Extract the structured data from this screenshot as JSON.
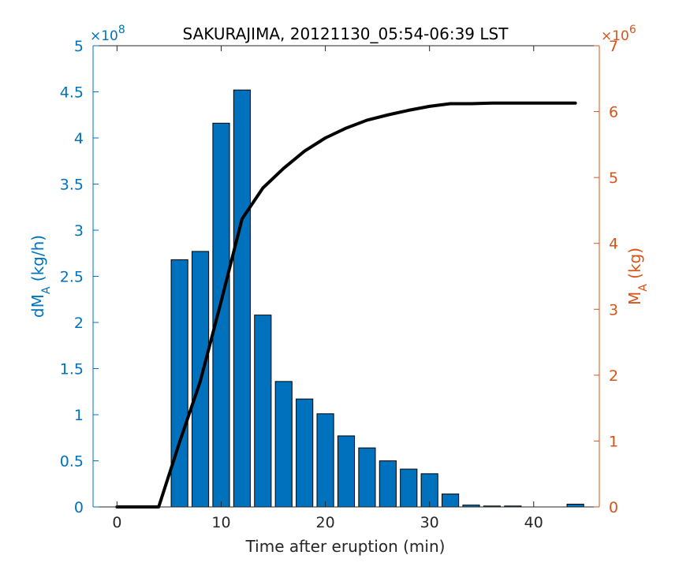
{
  "chart_data": {
    "type": "bar",
    "title": "SAKURAJIMA, 20121130_05:54-06:39 LST",
    "xlabel": "Time after eruption (min)",
    "ylabel_left": {
      "main": "dM",
      "sub": "A",
      "unit": " (kg/h)"
    },
    "ylabel_right": {
      "main": "M",
      "sub": "A",
      "unit": " (kg)"
    },
    "left_multiplier": {
      "times": "×10",
      "exponent": "8"
    },
    "right_multiplier": {
      "times": "×10",
      "exponent": "6"
    },
    "x_ticks": [
      0,
      10,
      20,
      30,
      40
    ],
    "x_tick_labels": [
      "0",
      "10",
      "20",
      "30",
      "40"
    ],
    "xlim": [
      -2.3,
      46.3
    ],
    "y_left_ticks": [
      0,
      0.5,
      1,
      1.5,
      2,
      2.5,
      3,
      3.5,
      4,
      4.5,
      5
    ],
    "y_left_tick_labels": [
      "0",
      "0.5",
      "1",
      "1.5",
      "2",
      "2.5",
      "3",
      "3.5",
      "4",
      "4.5",
      "5"
    ],
    "y_left_lim": [
      0,
      5
    ],
    "y_right_ticks": [
      0,
      1,
      2,
      3,
      4,
      5,
      6,
      7
    ],
    "y_right_tick_labels": [
      "0",
      "1",
      "2",
      "3",
      "4",
      "5",
      "6",
      "7"
    ],
    "y_right_lim": [
      0,
      7
    ],
    "colors": {
      "bars": "#0072BD",
      "left_axis": "#0072BD",
      "right_axis": "#D95319",
      "line": "#000000"
    },
    "bar_series": {
      "name": "dM_A (kg/h)",
      "axis": "left",
      "x": [
        6,
        8,
        10,
        12,
        14,
        16,
        18,
        20,
        22,
        24,
        26,
        28,
        30,
        32,
        34,
        36,
        38,
        40,
        42,
        44
      ],
      "values": [
        2.68,
        2.77,
        4.16,
        4.52,
        2.08,
        1.36,
        1.17,
        1.01,
        0.77,
        0.64,
        0.5,
        0.41,
        0.36,
        0.14,
        0.02,
        0.01,
        0.01,
        0.0,
        0.0,
        0.03
      ]
    },
    "line_series": {
      "name": "M_A (kg)",
      "axis": "right",
      "x": [
        0,
        4,
        6,
        8,
        10,
        12,
        14,
        16,
        18,
        20,
        22,
        24,
        26,
        28,
        30,
        32,
        34,
        36,
        38,
        40,
        42,
        44
      ],
      "values": [
        0,
        0,
        0.98,
        1.91,
        3.12,
        4.37,
        4.84,
        5.14,
        5.4,
        5.6,
        5.75,
        5.87,
        5.95,
        6.02,
        6.08,
        6.12,
        6.12,
        6.13,
        6.13,
        6.13,
        6.13,
        6.13
      ]
    }
  }
}
